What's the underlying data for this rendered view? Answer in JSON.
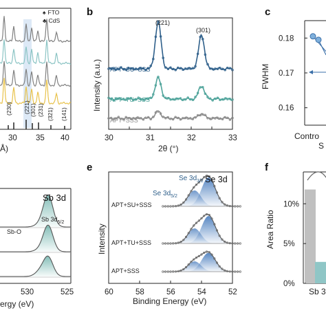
{
  "panel_labels": {
    "b": "b",
    "c": "c",
    "e": "e",
    "f": "f"
  },
  "chart_data": [
    {
      "panel": "a",
      "type": "line",
      "xlabel_fragment": "Å)",
      "x_ticks": [
        "30",
        "35",
        "40"
      ],
      "legend": [
        {
          "name": "FTO",
          "symbol": "♠"
        },
        {
          "name": "CdS",
          "symbol": "♣"
        }
      ],
      "peak_labels": [
        "(230)",
        "(221)",
        "(301)",
        "(231)",
        "(321)",
        "(141)"
      ],
      "series_colors": [
        "#7f7f7f",
        "#8bc4c4",
        "#808080",
        "#e8c24a"
      ]
    },
    {
      "panel": "b",
      "type": "line",
      "xlabel": "2θ (°)",
      "ylabel": "Intensity (a.u.)",
      "xlim": [
        30,
        33
      ],
      "x_ticks": [
        30,
        30.5,
        31,
        31.5,
        32,
        32.5,
        33
      ],
      "x_tick_labels": [
        "30",
        "",
        "31",
        "",
        "32",
        "",
        "33"
      ],
      "peak_labels": [
        {
          "text": "(221)",
          "x": 31.2
        },
        {
          "text": "(301)",
          "x": 32.25
        }
      ],
      "series": [
        {
          "name": "APT+SU+SSS",
          "color": "#2e5f8a",
          "peaks": [
            {
              "x": 31.2,
              "height": 1.0
            },
            {
              "x": 32.25,
              "height": 0.72
            }
          ]
        },
        {
          "name": "APT+TU+SSS",
          "color": "#4ea39a",
          "peaks": [
            {
              "x": 31.2,
              "height": 0.45
            },
            {
              "x": 32.25,
              "height": 0.28
            }
          ]
        },
        {
          "name": "APT+SSS",
          "color": "#8c8c8c",
          "peaks": [
            {
              "x": 31.2,
              "height": 0.15
            },
            {
              "x": 32.25,
              "height": 0.1
            }
          ]
        }
      ]
    },
    {
      "panel": "c",
      "type": "scatter",
      "ylabel": "FWHM",
      "ylim": [
        0.155,
        0.185
      ],
      "y_ticks": [
        0.16,
        0.17,
        0.18
      ],
      "y_tick_labels": [
        "0.16",
        "0.17",
        "0.18"
      ],
      "x_label_fragments": [
        "Contro",
        "S"
      ],
      "points": [
        {
          "y": 0.1805
        },
        {
          "y": 0.1795
        }
      ]
    },
    {
      "panel": "d",
      "type": "line",
      "title": "Sb 3d",
      "xlabel_fragment": "ergy (eV)",
      "x_ticks": [
        "530",
        "525"
      ],
      "annotations": [
        "Sb-O",
        "Sb 3d5/2"
      ]
    },
    {
      "panel": "e",
      "type": "line",
      "title": "Se 3d",
      "xlabel": "Binding Energy (eV)",
      "ylabel": "Intensity",
      "xlim": [
        60,
        52
      ],
      "x_ticks": [
        60,
        58,
        56,
        54,
        52
      ],
      "x_tick_labels": [
        "60",
        "58",
        "56",
        "54",
        "52"
      ],
      "annotations": [
        "Se 3d3/2",
        "Se 3d5/2"
      ],
      "series": [
        {
          "name": "APT+SU+SSS",
          "color": "#3a72b8",
          "height": 1.0
        },
        {
          "name": "APT+TU+SSS",
          "color": "#3a72b8",
          "height": 0.95
        },
        {
          "name": "APT+SSS",
          "color": "#3a72b8",
          "height": 0.65
        }
      ]
    },
    {
      "panel": "f",
      "type": "bar",
      "ylabel": "Area Ratio",
      "ylim": [
        0,
        14
      ],
      "y_ticks": [
        0,
        5,
        10
      ],
      "y_tick_labels": [
        "0%",
        "5%",
        "10%"
      ],
      "x_label_fragment": "Sb 3",
      "bars": [
        {
          "value": 11.8,
          "color": "#c0c0c0"
        },
        {
          "value": 2.7,
          "color": "#8fc6c6"
        }
      ]
    }
  ]
}
